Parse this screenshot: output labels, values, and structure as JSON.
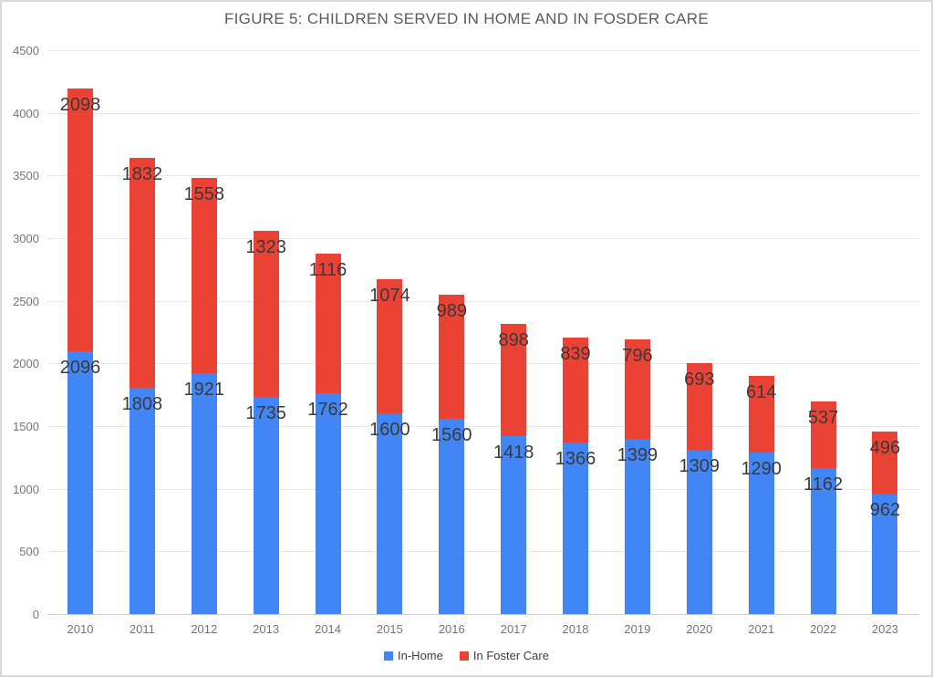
{
  "chart_data": {
    "type": "bar",
    "stacked": true,
    "title": "FIGURE 5: CHILDREN SERVED IN HOME AND IN FOSDER CARE",
    "categories": [
      "2010",
      "2011",
      "2012",
      "2013",
      "2014",
      "2015",
      "2016",
      "2017",
      "2018",
      "2019",
      "2020",
      "2021",
      "2022",
      "2023"
    ],
    "series": [
      {
        "name": "In-Home",
        "color": "#4285F4",
        "values": [
          2096,
          1808,
          1921,
          1735,
          1762,
          1600,
          1560,
          1418,
          1366,
          1399,
          1309,
          1290,
          1162,
          962
        ]
      },
      {
        "name": "In Foster Care",
        "color": "#EA4335",
        "values": [
          2098,
          1832,
          1558,
          1323,
          1116,
          1074,
          989,
          898,
          839,
          796,
          693,
          614,
          537,
          496
        ]
      }
    ],
    "xlabel": "",
    "ylabel": "",
    "ylim": [
      0,
      4500
    ],
    "yticks": [
      0,
      500,
      1000,
      1500,
      2000,
      2500,
      3000,
      3500,
      4000,
      4500
    ],
    "grid": true,
    "data_labels": true,
    "legend_position": "bottom"
  },
  "colors": {
    "in_home": "#4285F4",
    "in_foster_care": "#EA4335",
    "gridline": "#e7e7e7",
    "axis_baseline": "#cccccc",
    "title_text": "#5b5b5b",
    "tick_text": "#757575",
    "data_label_text": "#3a3a3a",
    "frame_border": "#d9d9d9"
  }
}
